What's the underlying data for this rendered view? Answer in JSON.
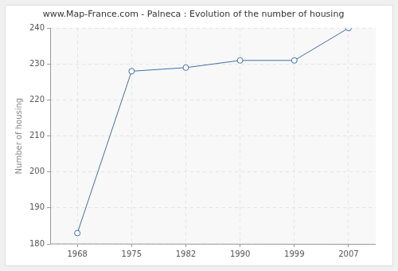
{
  "chart_data": {
    "type": "line",
    "title": "www.Map-France.com - Palneca : Evolution of the number of housing",
    "y_label": "Number of housing",
    "categories": [
      "1968",
      "1975",
      "1982",
      "1990",
      "1999",
      "2007"
    ],
    "values": [
      183,
      228,
      229,
      231,
      231,
      240
    ],
    "color": "#3f6fa6",
    "marker": "circle",
    "ylim": [
      180,
      240
    ],
    "yticks": [
      180,
      190,
      200,
      210,
      220,
      230,
      240
    ],
    "grid": true
  }
}
